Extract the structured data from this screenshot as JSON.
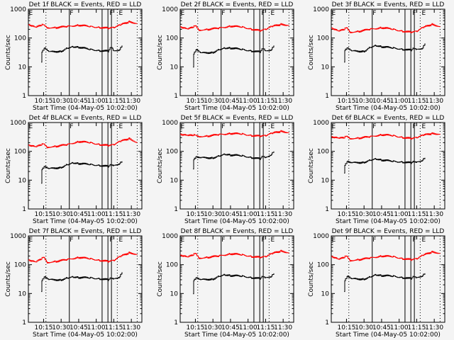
{
  "chart_data": {
    "type": "line",
    "time_unit": "minutes after 10:00",
    "xlim": [
      2,
      99
    ],
    "ylim": [
      1,
      1000
    ],
    "yscale": "log",
    "xticks": [
      15,
      30,
      45,
      60,
      75,
      90
    ],
    "xtick_labels": [
      "10:15",
      "10:30",
      "10:45",
      "11:00",
      "11:15",
      "11:30"
    ],
    "yticks": [
      1,
      10,
      100,
      1000
    ],
    "ytick_labels": [
      "1",
      "10",
      "100",
      "1000"
    ],
    "xlabel": "Start Time (04-May-05 10:02:00)",
    "ylabel": "Counts/sec",
    "series_colors": {
      "events": "#000000",
      "lld": "#ff0000"
    },
    "markers": {
      "dotted": [
        17,
        78,
        95
      ],
      "solid": [
        37,
        65,
        70,
        73
      ],
      "labels": [
        {
          "t": 2,
          "text": "E"
        },
        {
          "t": 37,
          "text": "F"
        },
        {
          "t": 71,
          "text": "F"
        },
        {
          "t": 79,
          "text": "E"
        }
      ]
    },
    "red_times": [
      2,
      8,
      13,
      15,
      18,
      25,
      35,
      45,
      55,
      63,
      70,
      75,
      80,
      88,
      95
    ],
    "black_times": [
      13,
      13.5,
      16,
      20,
      30,
      35,
      40,
      45,
      55,
      63,
      70,
      73,
      75,
      80,
      82
    ],
    "panels": [
      {
        "title": "Det 1f BLACK = Events, RED = LLD",
        "red": [
          300,
          230,
          280,
          300,
          230,
          230,
          250,
          280,
          250,
          230,
          220,
          230,
          280,
          370,
          320
        ],
        "black": [
          15,
          35,
          45,
          33,
          35,
          45,
          50,
          48,
          40,
          36,
          35,
          50,
          35,
          40,
          55
        ]
      },
      {
        "title": "Det 2f BLACK = Events, RED = LLD",
        "red": [
          250,
          200,
          240,
          280,
          190,
          200,
          220,
          260,
          240,
          200,
          180,
          200,
          250,
          300,
          280
        ],
        "black": [
          10,
          30,
          40,
          30,
          32,
          40,
          45,
          45,
          40,
          35,
          33,
          45,
          35,
          40,
          55
        ]
      },
      {
        "title": "Det 3f BLACK = Events, RED = LLD",
        "red": [
          230,
          170,
          200,
          240,
          160,
          170,
          200,
          230,
          200,
          170,
          160,
          170,
          230,
          300,
          250
        ],
        "black": [
          15,
          40,
          45,
          35,
          35,
          48,
          55,
          50,
          45,
          40,
          38,
          45,
          40,
          45,
          65
        ]
      },
      {
        "title": "Det 4f BLACK = Events, RED = LLD",
        "red": [
          170,
          140,
          170,
          190,
          140,
          150,
          170,
          220,
          200,
          170,
          160,
          170,
          220,
          280,
          200
        ],
        "black": [
          8,
          25,
          30,
          25,
          28,
          35,
          40,
          38,
          35,
          32,
          30,
          35,
          32,
          38,
          45
        ]
      },
      {
        "title": "Det 5f BLACK = Events, RED = LLD",
        "red": [
          400,
          350,
          360,
          380,
          330,
          340,
          380,
          420,
          400,
          350,
          340,
          350,
          420,
          500,
          450
        ],
        "black": [
          25,
          55,
          65,
          60,
          60,
          70,
          80,
          75,
          70,
          60,
          55,
          70,
          60,
          80,
          100
        ]
      },
      {
        "title": "Det 6f BLACK = Events, RED = LLD",
        "red": [
          330,
          280,
          300,
          350,
          280,
          290,
          320,
          380,
          350,
          300,
          280,
          300,
          360,
          420,
          400
        ],
        "black": [
          18,
          35,
          45,
          40,
          42,
          50,
          55,
          50,
          45,
          42,
          40,
          45,
          42,
          50,
          60
        ]
      },
      {
        "title": "Det 7f BLACK = Events, RED = LLD",
        "red": [
          150,
          120,
          160,
          190,
          120,
          130,
          150,
          180,
          160,
          140,
          130,
          140,
          190,
          260,
          230
        ],
        "black": [
          12,
          30,
          38,
          30,
          30,
          35,
          38,
          36,
          35,
          32,
          30,
          35,
          32,
          38,
          55
        ]
      },
      {
        "title": "Det 8f BLACK = Events, RED = LLD",
        "red": [
          220,
          180,
          220,
          260,
          170,
          180,
          200,
          240,
          220,
          190,
          180,
          190,
          240,
          300,
          260
        ],
        "black": [
          10,
          30,
          35,
          30,
          32,
          40,
          45,
          42,
          40,
          35,
          33,
          40,
          35,
          40,
          50
        ]
      },
      {
        "title": "Det 9f BLACK = Events, RED = LLD",
        "red": [
          200,
          150,
          180,
          210,
          140,
          150,
          170,
          200,
          190,
          160,
          150,
          160,
          210,
          280,
          250
        ],
        "black": [
          12,
          30,
          40,
          32,
          32,
          38,
          45,
          42,
          40,
          35,
          33,
          40,
          35,
          42,
          50
        ]
      }
    ]
  }
}
